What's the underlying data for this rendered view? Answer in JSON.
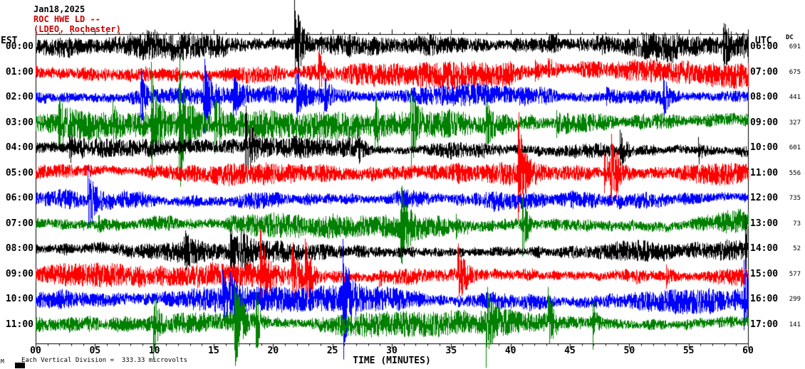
{
  "header": {
    "date": "Jan18,2025",
    "station": "ROC HWE LD --",
    "network": "(LDEO, Rochester)"
  },
  "axes": {
    "left_label": "EST",
    "right_label": "UTC",
    "dc_label": "DC",
    "x_label": "TIME (MINUTES)",
    "x_ticks": [
      "00",
      "05",
      "10",
      "15",
      "20",
      "25",
      "30",
      "35",
      "40",
      "45",
      "50",
      "55",
      "60"
    ]
  },
  "footer": {
    "scale_note": "Each Vertical Division =  333.33 microvolts",
    "corner_mark": "M"
  },
  "colors": {
    "title_accent": "#cc0000",
    "trace_black": "#000000",
    "trace_red": "#ff0000",
    "trace_blue": "#0000ff",
    "trace_green": "#008000"
  },
  "chart_data": {
    "type": "line",
    "subtype": "helicorder-seismogram",
    "title": "ROC HWE LD -- (LDEO, Rochester) Jan18,2025",
    "xlabel": "TIME (MINUTES)",
    "x_range": [
      0,
      60
    ],
    "x_tick_step": 5,
    "grid": false,
    "legend": "none",
    "vertical_division_microvolts": 333.33,
    "rows": [
      {
        "est": "00:00",
        "utc": "06:00",
        "dc": 691,
        "color": "#000000",
        "amp": 1.35
      },
      {
        "est": "01:00",
        "utc": "07:00",
        "dc": 675,
        "color": "#ff0000",
        "amp": 1.25
      },
      {
        "est": "02:00",
        "utc": "08:00",
        "dc": 441,
        "color": "#0000ff",
        "amp": 1.05
      },
      {
        "est": "03:00",
        "utc": "09:00",
        "dc": 327,
        "color": "#008000",
        "amp": 1.35
      },
      {
        "est": "04:00",
        "utc": "10:00",
        "dc": 601,
        "color": "#000000",
        "amp": 1.0
      },
      {
        "est": "05:00",
        "utc": "11:00",
        "dc": 556,
        "color": "#ff0000",
        "amp": 1.05
      },
      {
        "est": "06:00",
        "utc": "12:00",
        "dc": 735,
        "color": "#0000ff",
        "amp": 1.1
      },
      {
        "est": "07:00",
        "utc": "13:00",
        "dc": 73,
        "color": "#008000",
        "amp": 1.2
      },
      {
        "est": "08:00",
        "utc": "14:00",
        "dc": 52,
        "color": "#000000",
        "amp": 1.0
      },
      {
        "est": "09:00",
        "utc": "15:00",
        "dc": 577,
        "color": "#ff0000",
        "amp": 1.1
      },
      {
        "est": "10:00",
        "utc": "16:00",
        "dc": 299,
        "color": "#0000ff",
        "amp": 1.2
      },
      {
        "est": "11:00",
        "utc": "17:00",
        "dc": 141,
        "color": "#008000",
        "amp": 1.15
      }
    ],
    "note": "Traces are continuous ambient seismic noise; exact sample values are not recoverable from the image."
  }
}
